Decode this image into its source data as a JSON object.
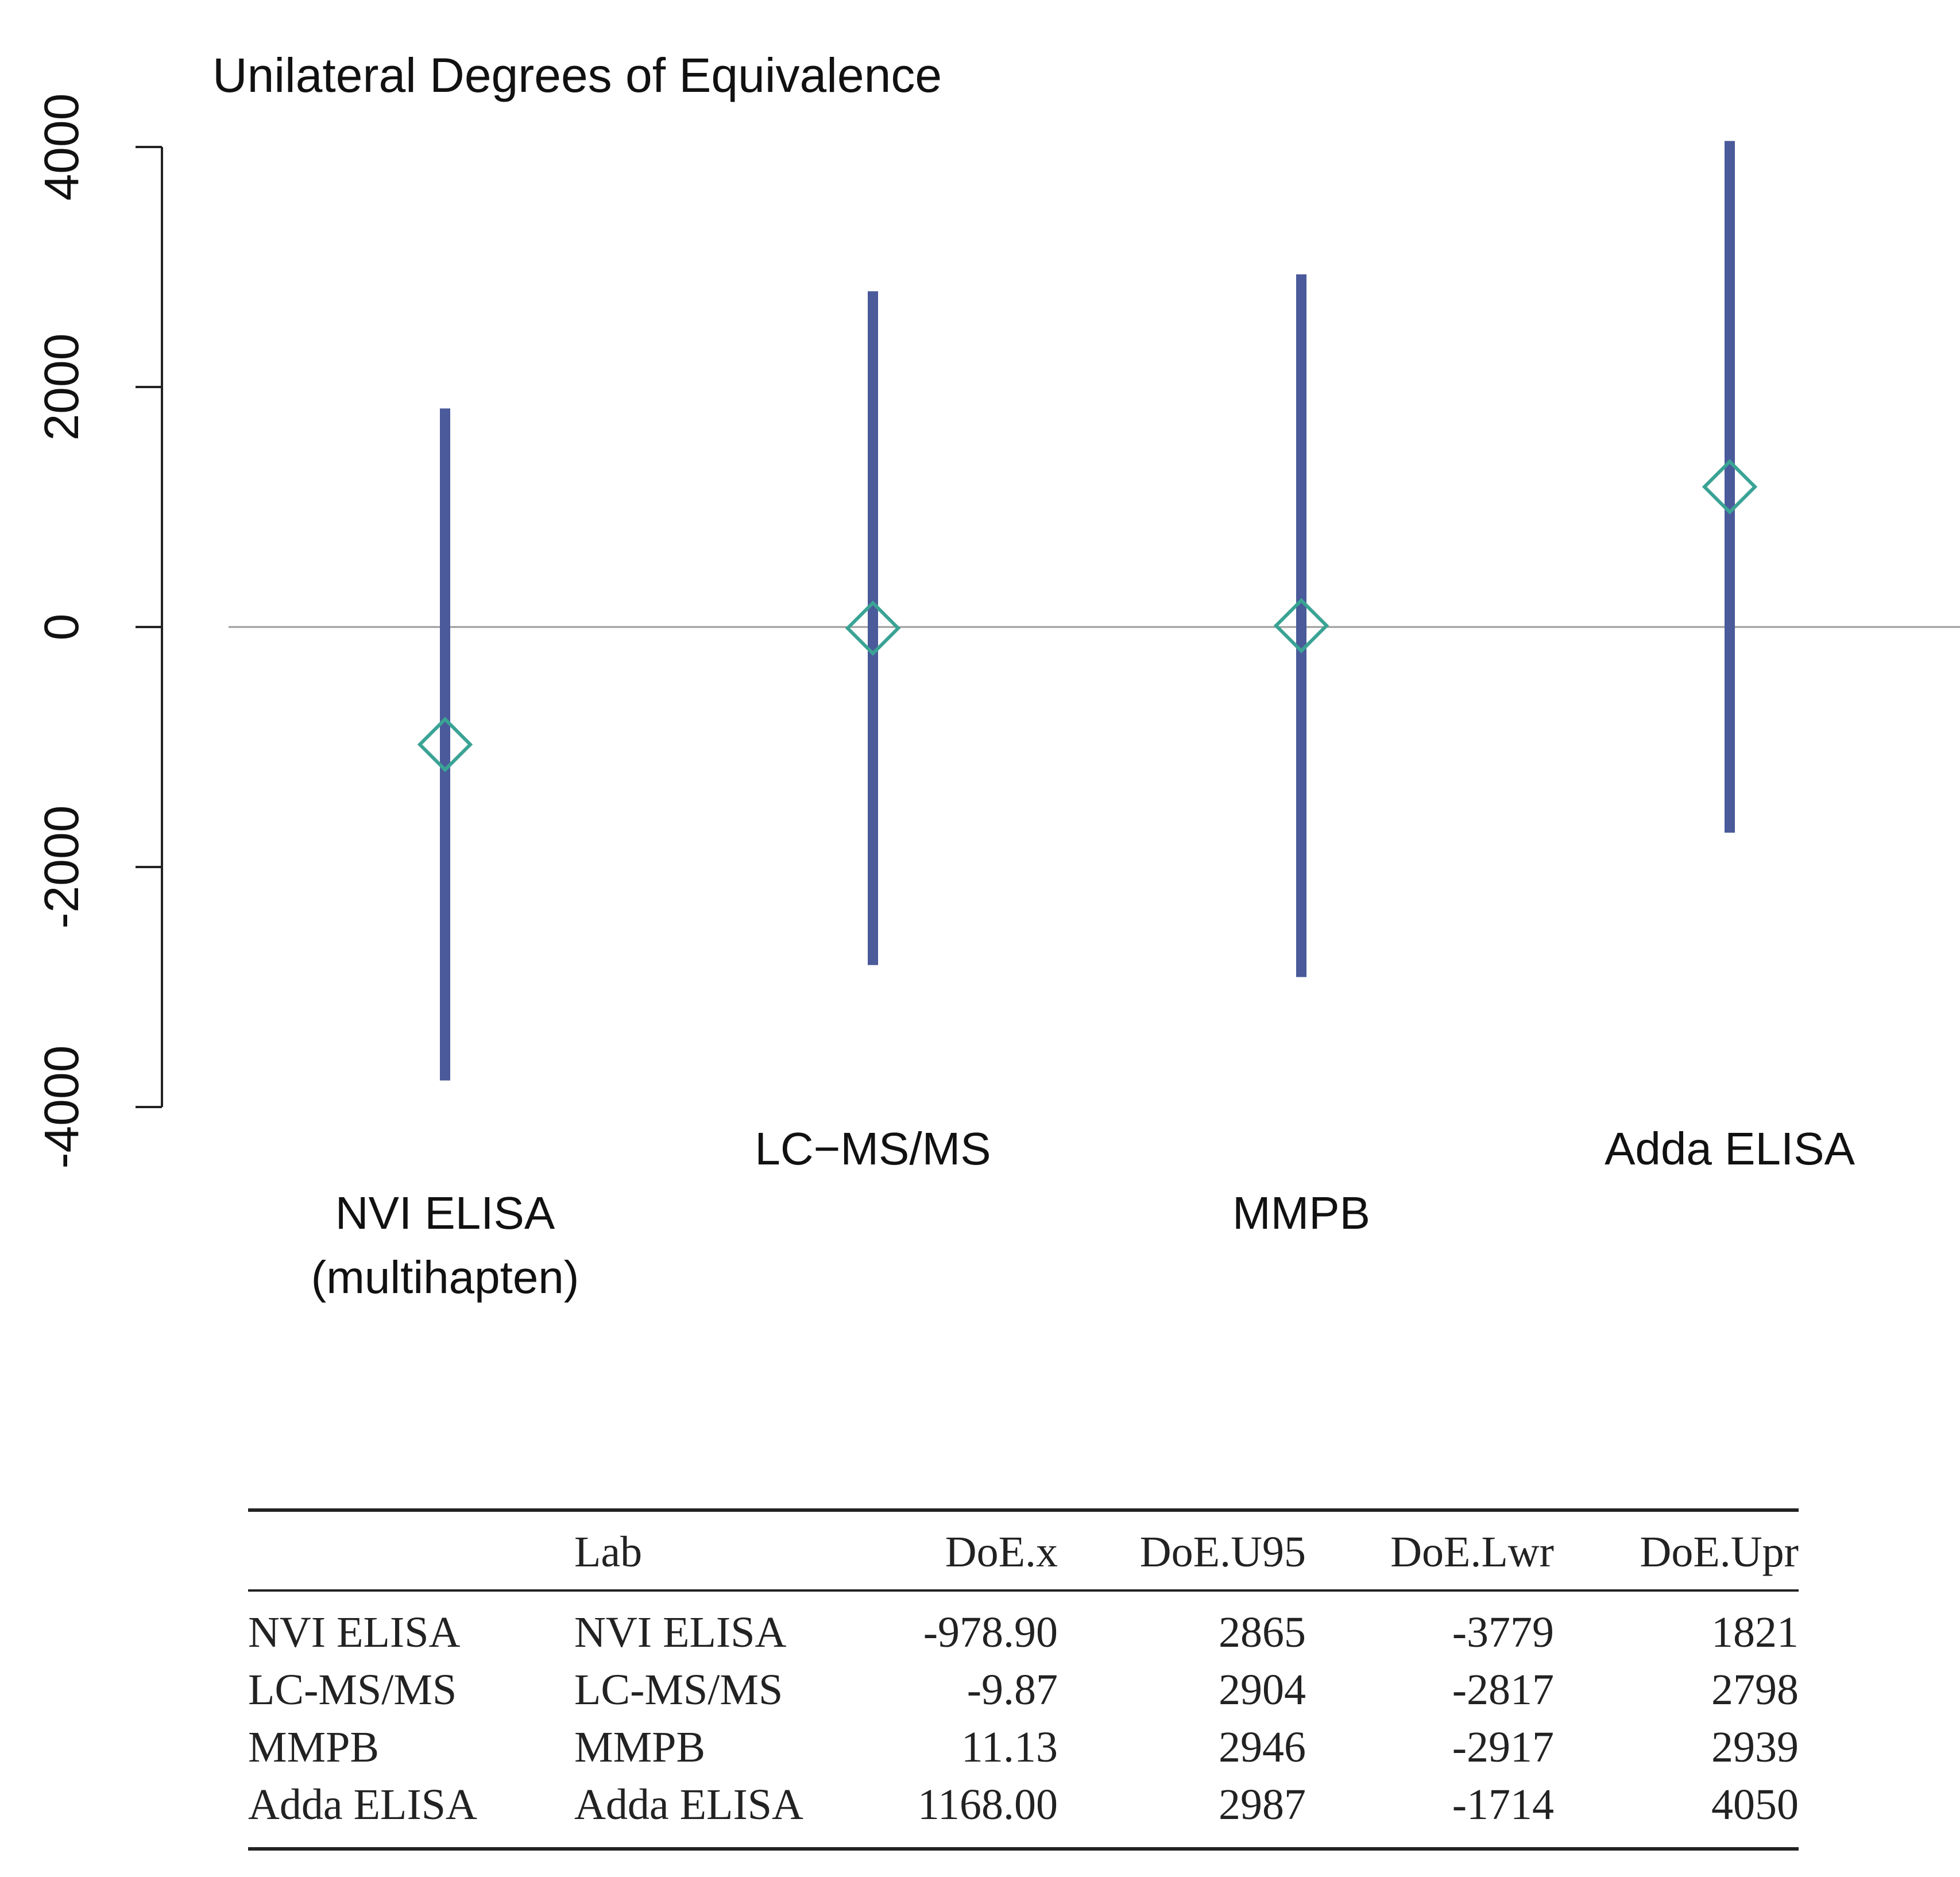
{
  "chart_data": {
    "type": "scatter",
    "title": "Unilateral Degrees of Equivalence",
    "xlabel": "",
    "ylabel": "",
    "ylim": [
      -4000,
      4000
    ],
    "yticks": [
      4000,
      2000,
      0,
      -2000,
      -4000
    ],
    "ytick_labels": [
      "4000",
      "2000",
      "0",
      "-2000",
      "-4000"
    ],
    "reference_line": 0,
    "grid": false,
    "colors": {
      "interval": "#4a5a9a",
      "point": "#3aa394",
      "reference": "#9a9a9a",
      "axis": "#222222"
    },
    "categories": [
      {
        "label_lines": [
          "NVI ELISA",
          "(multihapten)"
        ],
        "x": -978.9,
        "lower": -3779,
        "upper": 1821
      },
      {
        "label_lines": [
          "LC−MS/MS"
        ],
        "x": -9.87,
        "lower": -2817,
        "upper": 2798
      },
      {
        "label_lines": [
          "MMPB"
        ],
        "x": 11.13,
        "lower": -2917,
        "upper": 2939
      },
      {
        "label_lines": [
          "Adda ELISA"
        ],
        "x": 1168.0,
        "lower": -1714,
        "upper": 4050
      }
    ]
  },
  "table": {
    "headers": [
      "",
      "Lab",
      "DoE.x",
      "DoE.U95",
      "DoE.Lwr",
      "DoE.Upr"
    ],
    "rows": [
      [
        "NVI ELISA",
        "NVI ELISA",
        "-978.90",
        "2865",
        "-3779",
        "1821"
      ],
      [
        "LC-MS/MS",
        "LC-MS/MS",
        "-9.87",
        "2904",
        "-2817",
        "2798"
      ],
      [
        "MMPB",
        "MMPB",
        "11.13",
        "2946",
        "-2917",
        "2939"
      ],
      [
        "Adda ELISA",
        "Adda ELISA",
        "1168.00",
        "2987",
        "-1714",
        "4050"
      ]
    ]
  }
}
